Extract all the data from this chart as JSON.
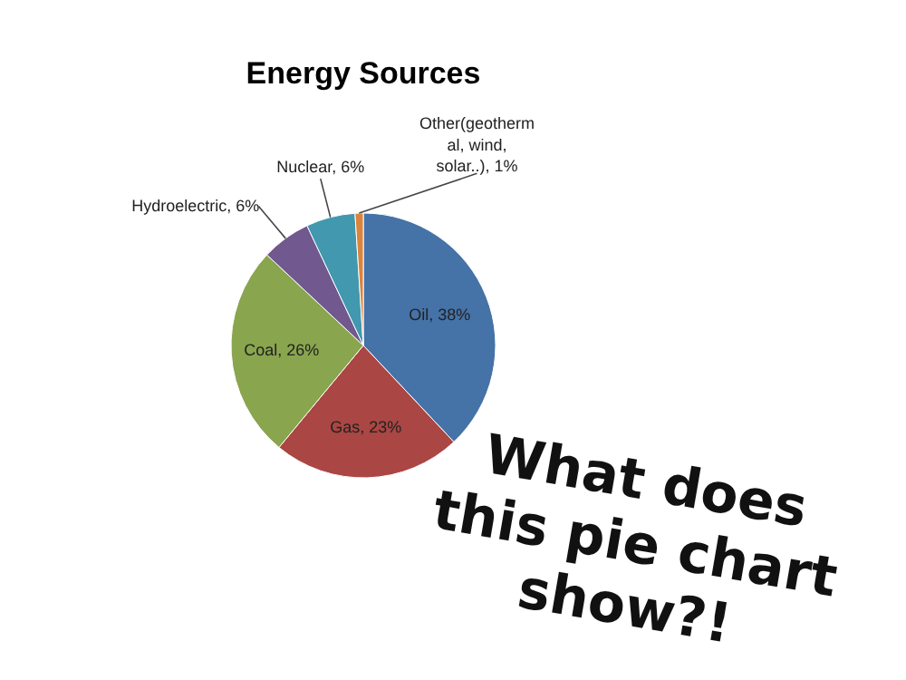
{
  "chart_data": {
    "type": "pie",
    "title": "Energy Sources",
    "categories": [
      "Oil",
      "Gas",
      "Coal",
      "Hydroelectric",
      "Nuclear",
      "Other(geothermal, wind, solar..)"
    ],
    "values": [
      38,
      23,
      26,
      6,
      6,
      1
    ],
    "colors": [
      "#4572a7",
      "#aa4643",
      "#89a54e",
      "#71588f",
      "#4198af",
      "#db843d"
    ],
    "value_labels": [
      "38%",
      "23%",
      "26%",
      "6%",
      "6%",
      "1%"
    ],
    "annotations": [
      "What does\nthis pie chart\nshow?!"
    ]
  }
}
